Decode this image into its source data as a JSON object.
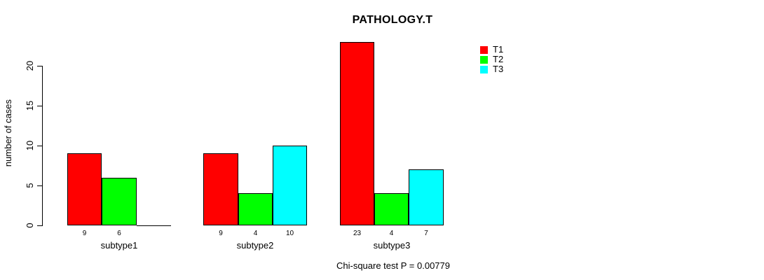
{
  "chart_data": {
    "type": "bar",
    "title": "PATHOLOGY.T",
    "ylabel": "number of cases",
    "xlabel": "",
    "categories": [
      "subtype1",
      "subtype2",
      "subtype3"
    ],
    "series": [
      {
        "name": "T1",
        "color": "#ff0000",
        "values": [
          9,
          9,
          23
        ]
      },
      {
        "name": "T2",
        "color": "#00ff00",
        "values": [
          6,
          4,
          4
        ]
      },
      {
        "name": "T3",
        "color": "#00ffff",
        "values": [
          0,
          10,
          7
        ]
      }
    ],
    "bar_value_labels": [
      [
        "9",
        "6",
        ""
      ],
      [
        "9",
        "4",
        "10"
      ],
      [
        "23",
        "4",
        "7"
      ]
    ],
    "y_ticks": [
      0,
      5,
      10,
      15,
      20
    ],
    "ylim": [
      0,
      20
    ],
    "grid": false,
    "legend_position": "top-right",
    "legend_entries": [
      "T1",
      "T2",
      "T3"
    ],
    "annotation": "Chi-square test P = 0.00779"
  }
}
